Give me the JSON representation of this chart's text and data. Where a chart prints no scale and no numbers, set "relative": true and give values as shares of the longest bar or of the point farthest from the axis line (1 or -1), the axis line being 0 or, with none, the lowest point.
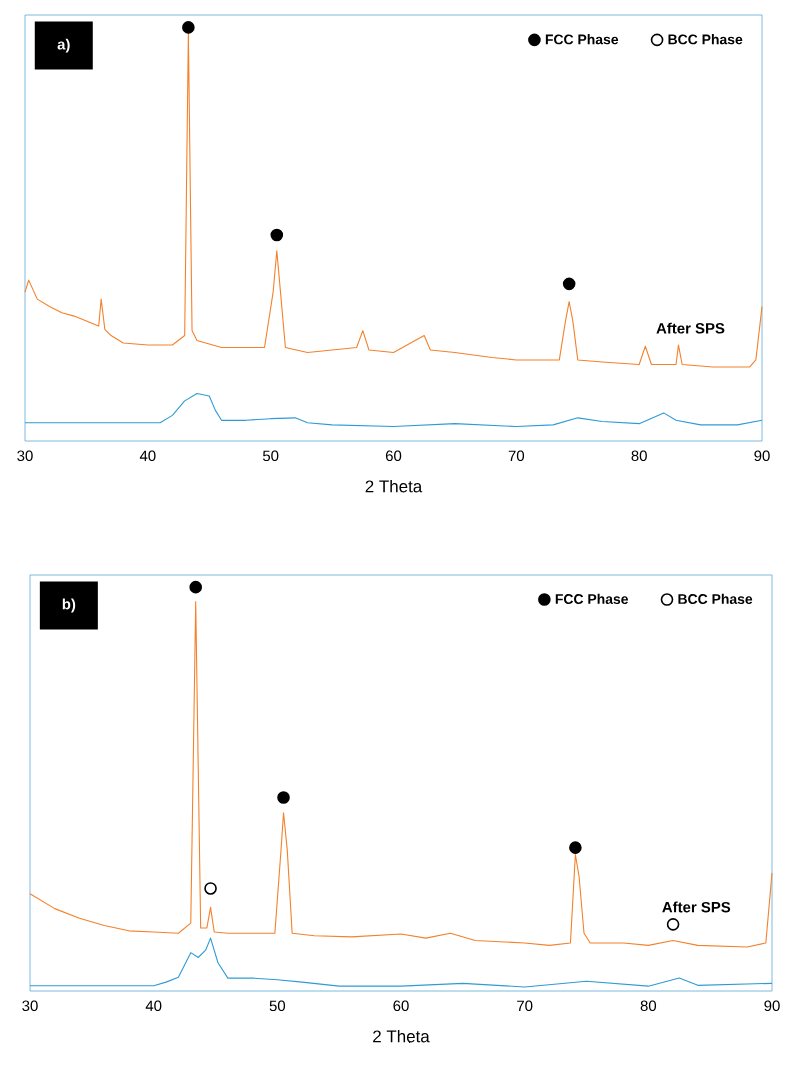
{
  "chart_data": [
    {
      "type": "line",
      "relative": true,
      "xlabel": "2 Theta",
      "xlim": [
        30,
        90
      ],
      "xticks": [
        30,
        40,
        50,
        60,
        70,
        80,
        90
      ],
      "legend": "top right",
      "annotations": [
        "a)",
        "After SPS"
      ],
      "series": [
        {
          "color": "#f4812b",
          "x": [
            30,
            30.3,
            31,
            32,
            33,
            34,
            35,
            36,
            36.2,
            36.5,
            37,
            38,
            40,
            42,
            43,
            43.3,
            43.6,
            44,
            46,
            48,
            49.5,
            50.2,
            50.5,
            50.8,
            51.2,
            53,
            55,
            57,
            57.5,
            58,
            60,
            62.5,
            63,
            65,
            68,
            70,
            72,
            73.5,
            74,
            74.3,
            74.6,
            75,
            77,
            80,
            80.5,
            81,
            83,
            83.2,
            83.5,
            86,
            89,
            89.5,
            90
          ],
          "values": [
            0.36,
            0.389,
            0.343,
            0.325,
            0.31,
            0.302,
            0.29,
            0.278,
            0.343,
            0.27,
            0.255,
            0.237,
            0.232,
            0.232,
            0.255,
            0.986,
            0.267,
            0.243,
            0.226,
            0.226,
            0.226,
            0.36,
            0.46,
            0.36,
            0.226,
            0.214,
            0.22,
            0.226,
            0.267,
            0.22,
            0.214,
            0.255,
            0.22,
            0.214,
            0.202,
            0.196,
            0.196,
            0.196,
            0.29,
            0.337,
            0.29,
            0.196,
            0.191,
            0.185,
            0.229,
            0.185,
            0.185,
            0.232,
            0.185,
            0.179,
            0.179,
            0.196,
            0.325
          ]
        },
        {
          "color": "#2e9bd6",
          "x": [
            30,
            35,
            41,
            42,
            43,
            44,
            45,
            45.5,
            46,
            48,
            50,
            52,
            53,
            55,
            60,
            65,
            70,
            73,
            75,
            77,
            80,
            82,
            83,
            85,
            88,
            90
          ],
          "values": [
            0.044,
            0.044,
            0.044,
            0.062,
            0.097,
            0.115,
            0.109,
            0.074,
            0.05,
            0.05,
            0.054,
            0.056,
            0.044,
            0.039,
            0.035,
            0.042,
            0.035,
            0.039,
            0.056,
            0.047,
            0.042,
            0.068,
            0.05,
            0.039,
            0.039,
            0.05
          ]
        },
        {
          "type": "scatter",
          "name": "FCC Phase",
          "color": "#000000",
          "marker": "circle",
          "x": [
            43.3,
            50.5,
            74.3
          ],
          "values": [
            1.0,
            0.498,
            0.38
          ]
        },
        {
          "type": "scatter",
          "name": "BCC Phase",
          "color": "#ffffff",
          "marker": "circle"
        }
      ]
    },
    {
      "type": "line",
      "relative": true,
      "xlabel": "2 Theta",
      "xlim": [
        30,
        90
      ],
      "xticks": [
        30,
        40,
        50,
        60,
        70,
        80,
        90
      ],
      "legend": "top right",
      "annotations": [
        "b)",
        "After SPS"
      ],
      "series": [
        {
          "color": "#f4812b",
          "x": [
            30,
            32,
            34,
            36,
            38,
            40,
            42,
            43,
            43.4,
            43.8,
            44.3,
            44.6,
            44.9,
            46,
            48,
            49.8,
            50.3,
            50.5,
            50.8,
            51.2,
            53,
            56,
            60,
            62,
            64,
            66,
            70,
            72,
            73.7,
            74.1,
            74.4,
            74.8,
            75.3,
            78,
            80,
            82,
            84,
            88,
            89.5,
            90
          ],
          "values": [
            0.241,
            0.204,
            0.18,
            0.162,
            0.149,
            0.146,
            0.143,
            0.168,
            0.964,
            0.156,
            0.156,
            0.207,
            0.146,
            0.143,
            0.143,
            0.143,
            0.35,
            0.441,
            0.35,
            0.143,
            0.137,
            0.134,
            0.141,
            0.131,
            0.143,
            0.125,
            0.119,
            0.113,
            0.119,
            0.338,
            0.283,
            0.143,
            0.119,
            0.119,
            0.113,
            0.125,
            0.113,
            0.109,
            0.119,
            0.292
          ]
        },
        {
          "color": "#2e9bd6",
          "x": [
            30,
            40,
            41,
            42,
            43,
            43.6,
            44.2,
            44.6,
            45.2,
            46,
            48,
            50,
            52,
            55,
            60,
            65,
            70,
            75,
            80,
            82.5,
            84,
            90
          ],
          "values": [
            0.013,
            0.013,
            0.022,
            0.034,
            0.095,
            0.083,
            0.101,
            0.131,
            0.07,
            0.032,
            0.032,
            0.028,
            0.022,
            0.012,
            0.012,
            0.019,
            0.01,
            0.024,
            0.012,
            0.032,
            0.014,
            0.019
          ]
        },
        {
          "type": "scatter",
          "name": "FCC Phase",
          "color": "#000000",
          "marker": "circle",
          "x": [
            43.4,
            50.5,
            74.1
          ],
          "values": [
            1.0,
            0.479,
            0.355
          ]
        },
        {
          "type": "scatter",
          "name": "BCC Phase",
          "color": "#ffffff",
          "marker": "circle",
          "x": [
            44.6,
            82
          ],
          "values": [
            0.254,
            0.165
          ]
        }
      ]
    }
  ]
}
